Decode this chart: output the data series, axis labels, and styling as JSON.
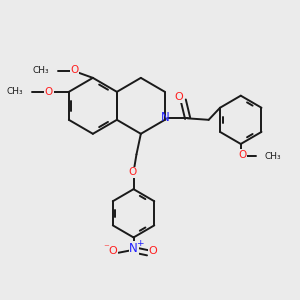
{
  "bg_color": "#ebebeb",
  "bond_color": "#1a1a1a",
  "N_color": "#2020ff",
  "O_color": "#ff2020",
  "lw": 1.4,
  "figsize": [
    3.0,
    3.0
  ],
  "dpi": 100,
  "xlim": [
    0,
    10
  ],
  "ylim": [
    0,
    10
  ]
}
